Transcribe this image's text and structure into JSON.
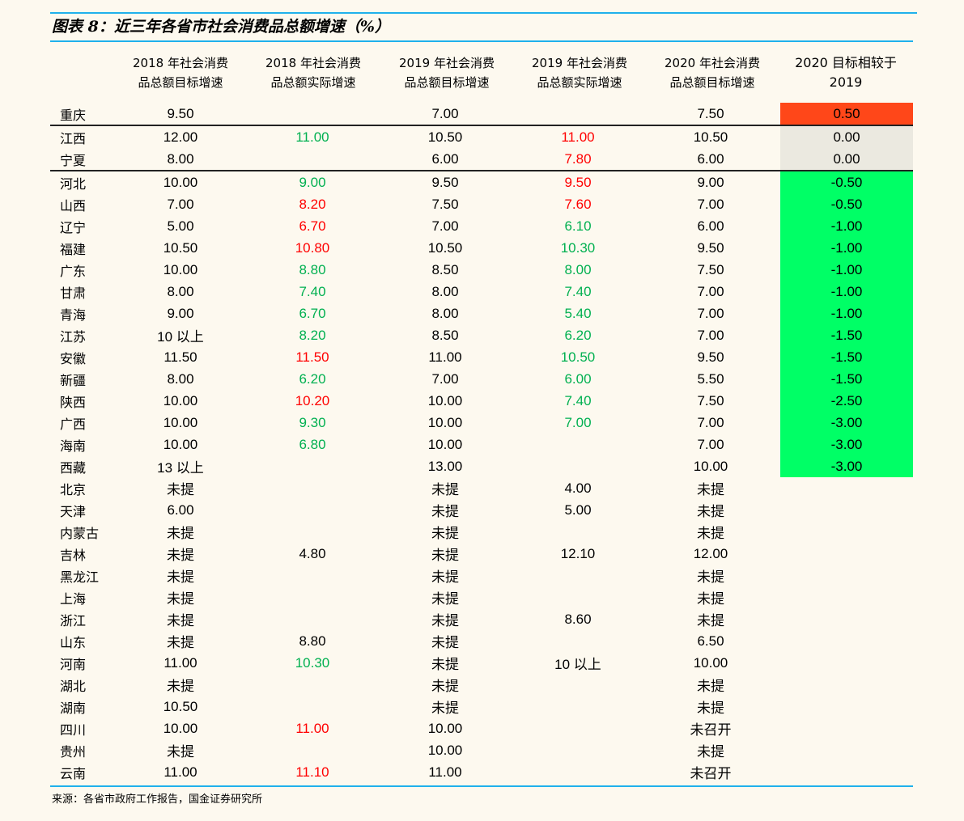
{
  "title": "图表 8：近三年各省市社会消费品总额增速（%）",
  "headers": [
    "2018 年社会消费\n品总额目标增速",
    "2018 年社会消费\n品总额实际增速",
    "2019 年社会消费\n品总额目标增速",
    "2019 年社会消费\n品总额实际增速",
    "2020 年社会消费\n品总额目标增速",
    "2020 目标相较于\n2019"
  ],
  "colors": {
    "green_text": "#00b050",
    "red_text": "#ff0000",
    "increase_fill": "#ff4719",
    "flat_fill": "#ebe9e0",
    "decrease_fill": "#00ff66",
    "rule": "#1fb1ec"
  },
  "rows": [
    {
      "name": "重庆",
      "t18": "9.50",
      "a18": "",
      "a18c": "",
      "t19": "7.00",
      "a19": "",
      "a19c": "",
      "t20": "7.50",
      "diff": "0.50",
      "dc": "hr",
      "sep": true
    },
    {
      "name": "江西",
      "t18": "12.00",
      "a18": "11.00",
      "a18c": "g",
      "t19": "10.50",
      "a19": "11.00",
      "a19c": "r",
      "t20": "10.50",
      "diff": "0.00",
      "dc": "hg"
    },
    {
      "name": "宁夏",
      "t18": "8.00",
      "a18": "",
      "a18c": "",
      "t19": "6.00",
      "a19": "7.80",
      "a19c": "r",
      "t20": "6.00",
      "diff": "0.00",
      "dc": "hg",
      "sep": true
    },
    {
      "name": "河北",
      "t18": "10.00",
      "a18": "9.00",
      "a18c": "g",
      "t19": "9.50",
      "a19": "9.50",
      "a19c": "r",
      "t20": "9.00",
      "diff": "-0.50",
      "dc": "hgr"
    },
    {
      "name": "山西",
      "t18": "7.00",
      "a18": "8.20",
      "a18c": "r",
      "t19": "7.50",
      "a19": "7.60",
      "a19c": "r",
      "t20": "7.00",
      "diff": "-0.50",
      "dc": "hgr"
    },
    {
      "name": "辽宁",
      "t18": "5.00",
      "a18": "6.70",
      "a18c": "r",
      "t19": "7.00",
      "a19": "6.10",
      "a19c": "g",
      "t20": "6.00",
      "diff": "-1.00",
      "dc": "hgr"
    },
    {
      "name": "福建",
      "t18": "10.50",
      "a18": "10.80",
      "a18c": "r",
      "t19": "10.50",
      "a19": "10.30",
      "a19c": "g",
      "t20": "9.50",
      "diff": "-1.00",
      "dc": "hgr"
    },
    {
      "name": "广东",
      "t18": "10.00",
      "a18": "8.80",
      "a18c": "g",
      "t19": "8.50",
      "a19": "8.00",
      "a19c": "g",
      "t20": "7.50",
      "diff": "-1.00",
      "dc": "hgr"
    },
    {
      "name": "甘肃",
      "t18": "8.00",
      "a18": "7.40",
      "a18c": "g",
      "t19": "8.00",
      "a19": "7.40",
      "a19c": "g",
      "t20": "7.00",
      "diff": "-1.00",
      "dc": "hgr"
    },
    {
      "name": "青海",
      "t18": "9.00",
      "a18": "6.70",
      "a18c": "g",
      "t19": "8.00",
      "a19": "5.40",
      "a19c": "g",
      "t20": "7.00",
      "diff": "-1.00",
      "dc": "hgr"
    },
    {
      "name": "江苏",
      "t18": "10 以上",
      "a18": "8.20",
      "a18c": "g",
      "t19": "8.50",
      "a19": "6.20",
      "a19c": "g",
      "t20": "7.00",
      "diff": "-1.50",
      "dc": "hgr"
    },
    {
      "name": "安徽",
      "t18": "11.50",
      "a18": "11.50",
      "a18c": "r",
      "t19": "11.00",
      "a19": "10.50",
      "a19c": "g",
      "t20": "9.50",
      "diff": "-1.50",
      "dc": "hgr"
    },
    {
      "name": "新疆",
      "t18": "8.00",
      "a18": "6.20",
      "a18c": "g",
      "t19": "7.00",
      "a19": "6.00",
      "a19c": "g",
      "t20": "5.50",
      "diff": "-1.50",
      "dc": "hgr"
    },
    {
      "name": "陕西",
      "t18": "10.00",
      "a18": "10.20",
      "a18c": "r",
      "t19": "10.00",
      "a19": "7.40",
      "a19c": "g",
      "t20": "7.50",
      "diff": "-2.50",
      "dc": "hgr"
    },
    {
      "name": "广西",
      "t18": "10.00",
      "a18": "9.30",
      "a18c": "g",
      "t19": "10.00",
      "a19": "7.00",
      "a19c": "g",
      "t20": "7.00",
      "diff": "-3.00",
      "dc": "hgr"
    },
    {
      "name": "海南",
      "t18": "10.00",
      "a18": "6.80",
      "a18c": "g",
      "t19": "10.00",
      "a19": "",
      "a19c": "",
      "t20": "7.00",
      "diff": "-3.00",
      "dc": "hgr"
    },
    {
      "name": "西藏",
      "t18": "13 以上",
      "a18": "",
      "a18c": "",
      "t19": "13.00",
      "a19": "",
      "a19c": "",
      "t20": "10.00",
      "diff": "-3.00",
      "dc": "hgr"
    },
    {
      "name": "北京",
      "t18": "未提",
      "a18": "",
      "a18c": "",
      "t19": "未提",
      "a19": "4.00",
      "a19c": "",
      "t20": "未提",
      "diff": "",
      "dc": ""
    },
    {
      "name": "天津",
      "t18": "6.00",
      "a18": "",
      "a18c": "",
      "t19": "未提",
      "a19": "5.00",
      "a19c": "",
      "t20": "未提",
      "diff": "",
      "dc": ""
    },
    {
      "name": "内蒙古",
      "t18": "未提",
      "a18": "",
      "a18c": "",
      "t19": "未提",
      "a19": "",
      "a19c": "",
      "t20": "未提",
      "diff": "",
      "dc": ""
    },
    {
      "name": "吉林",
      "t18": "未提",
      "a18": "4.80",
      "a18c": "",
      "t19": "未提",
      "a19": "12.10",
      "a19c": "",
      "t20": "12.00",
      "diff": "",
      "dc": ""
    },
    {
      "name": "黑龙江",
      "t18": "未提",
      "a18": "",
      "a18c": "",
      "t19": "未提",
      "a19": "",
      "a19c": "",
      "t20": "未提",
      "diff": "",
      "dc": ""
    },
    {
      "name": "上海",
      "t18": "未提",
      "a18": "",
      "a18c": "",
      "t19": "未提",
      "a19": "",
      "a19c": "",
      "t20": "未提",
      "diff": "",
      "dc": ""
    },
    {
      "name": "浙江",
      "t18": "未提",
      "a18": "",
      "a18c": "",
      "t19": "未提",
      "a19": "8.60",
      "a19c": "",
      "t20": "未提",
      "diff": "",
      "dc": ""
    },
    {
      "name": "山东",
      "t18": "未提",
      "a18": "8.80",
      "a18c": "",
      "t19": "未提",
      "a19": "",
      "a19c": "",
      "t20": "6.50",
      "diff": "",
      "dc": ""
    },
    {
      "name": "河南",
      "t18": "11.00",
      "a18": "10.30",
      "a18c": "g",
      "t19": "未提",
      "a19": "10 以上",
      "a19c": "",
      "t20": "10.00",
      "diff": "",
      "dc": ""
    },
    {
      "name": "湖北",
      "t18": "未提",
      "a18": "",
      "a18c": "",
      "t19": "未提",
      "a19": "",
      "a19c": "",
      "t20": "未提",
      "diff": "",
      "dc": ""
    },
    {
      "name": "湖南",
      "t18": "10.50",
      "a18": "",
      "a18c": "",
      "t19": "未提",
      "a19": "",
      "a19c": "",
      "t20": "未提",
      "diff": "",
      "dc": ""
    },
    {
      "name": "四川",
      "t18": "10.00",
      "a18": "11.00",
      "a18c": "r",
      "t19": "10.00",
      "a19": "",
      "a19c": "",
      "t20": "未召开",
      "diff": "",
      "dc": ""
    },
    {
      "name": "贵州",
      "t18": "未提",
      "a18": "",
      "a18c": "",
      "t19": "10.00",
      "a19": "",
      "a19c": "",
      "t20": "未提",
      "diff": "",
      "dc": ""
    },
    {
      "name": "云南",
      "t18": "11.00",
      "a18": "11.10",
      "a18c": "r",
      "t19": "11.00",
      "a19": "",
      "a19c": "",
      "t20": "未召开",
      "diff": "",
      "dc": ""
    }
  ],
  "source": "来源：各省市政府工作报告，国金证券研究所"
}
